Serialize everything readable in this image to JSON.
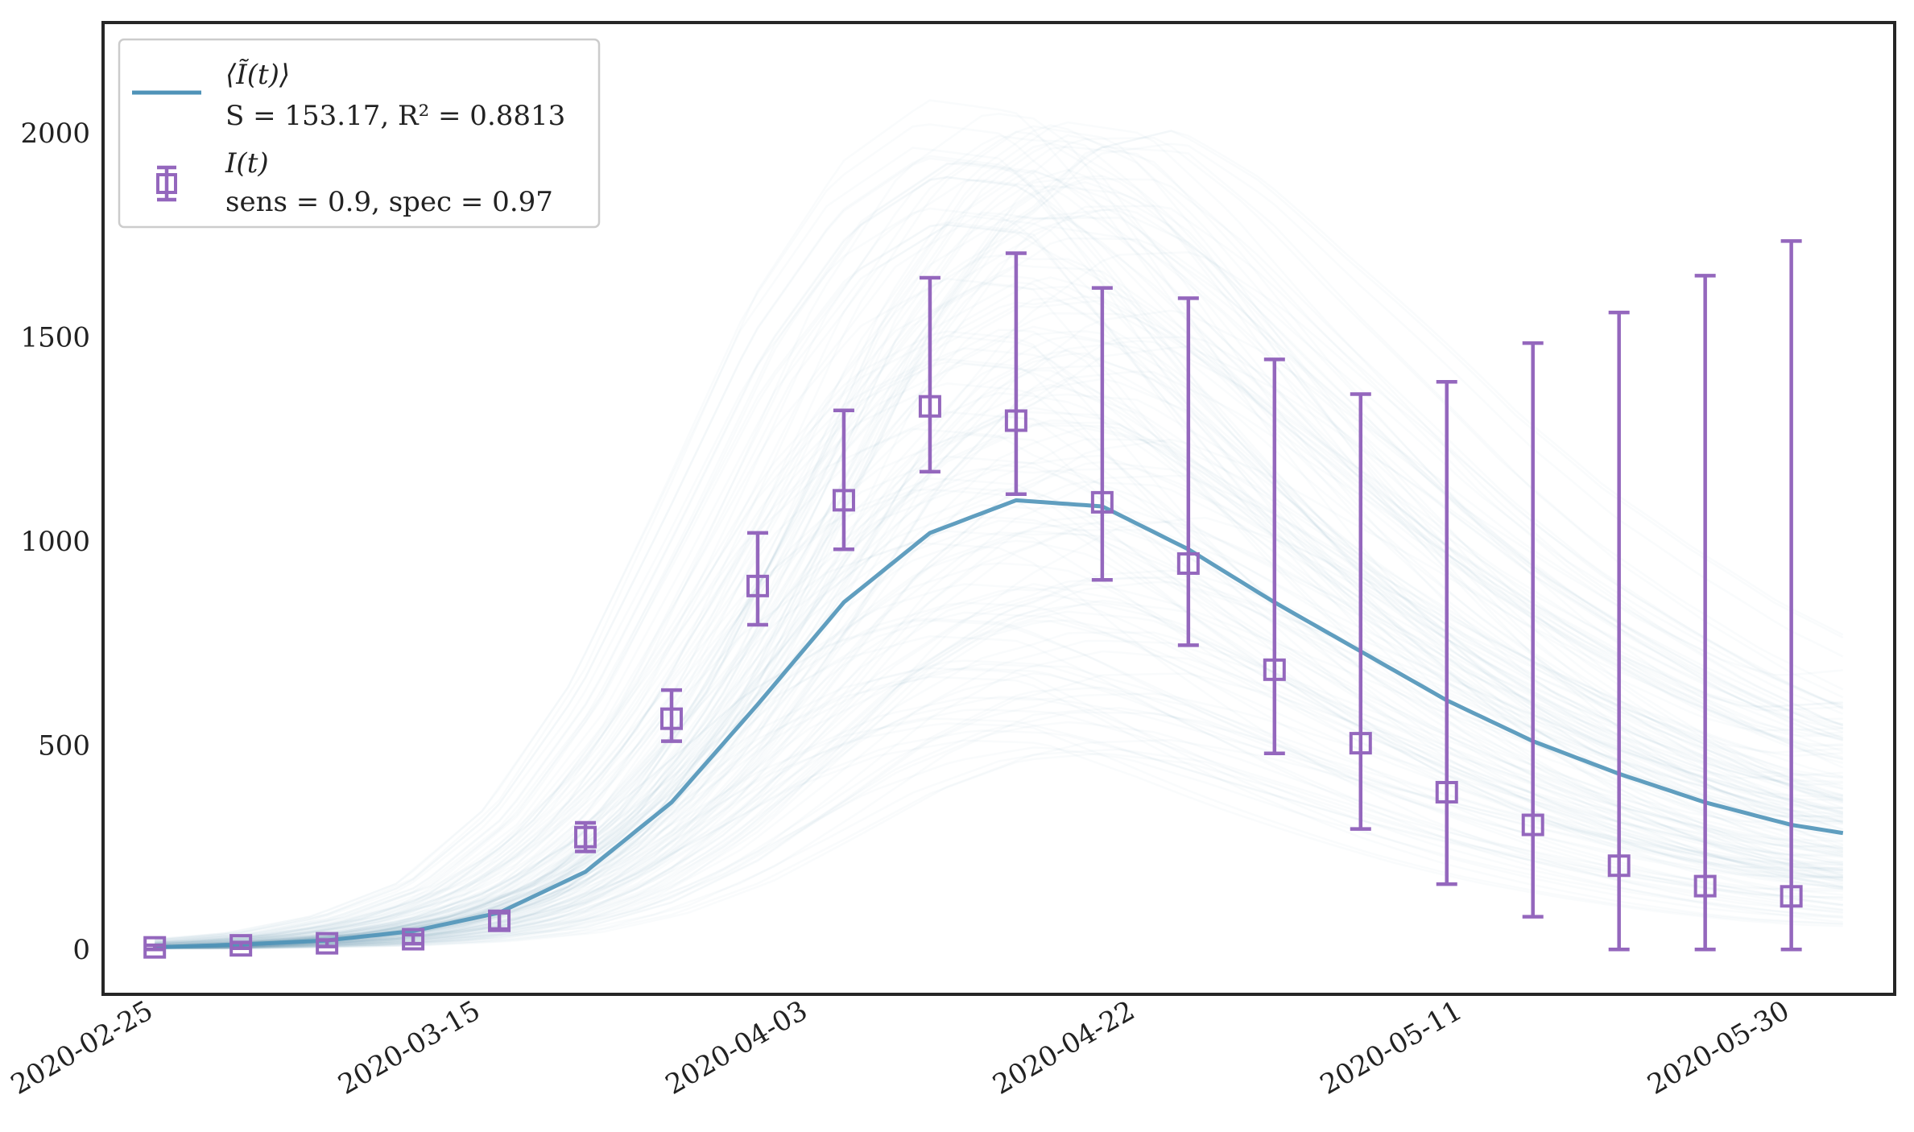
{
  "chart_data": {
    "type": "line",
    "title": "",
    "xlabel": "",
    "ylabel": "",
    "grid": false,
    "legend_position": "top-left",
    "xlim": [
      "2020-02-22",
      "2020-06-05"
    ],
    "ylim": [
      -110,
      2270
    ],
    "x_ticks": [
      "2020-02-25",
      "2020-03-15",
      "2020-04-03",
      "2020-04-22",
      "2020-05-11",
      "2020-05-30"
    ],
    "y_ticks": [
      0,
      500,
      1000,
      1500,
      2000
    ],
    "series": [
      {
        "name": "⟨Ĩ(t)⟩",
        "name_math": "⟨Ĩ(t)⟩",
        "subtitle": "S = 153.17, R² = 0.8813",
        "kind": "line",
        "color": "#4f93b8",
        "x": [
          "2020-02-25",
          "2020-03-01",
          "2020-03-06",
          "2020-03-11",
          "2020-03-16",
          "2020-03-21",
          "2020-03-26",
          "2020-03-31",
          "2020-04-05",
          "2020-04-10",
          "2020-04-15",
          "2020-04-20",
          "2020-04-25",
          "2020-04-30",
          "2020-05-05",
          "2020-05-10",
          "2020-05-15",
          "2020-05-20",
          "2020-05-25",
          "2020-05-30",
          "2020-06-02"
        ],
        "y": [
          5,
          12,
          22,
          45,
          90,
          190,
          360,
          600,
          850,
          1020,
          1100,
          1085,
          980,
          850,
          730,
          610,
          510,
          430,
          360,
          305,
          285
        ]
      },
      {
        "name": "I(t)",
        "name_math": "I(t)",
        "subtitle": "sens = 0.9, spec = 0.97",
        "kind": "errorbar",
        "color": "#9467bd",
        "x": [
          "2020-02-25",
          "2020-03-01",
          "2020-03-06",
          "2020-03-11",
          "2020-03-16",
          "2020-03-21",
          "2020-03-26",
          "2020-03-31",
          "2020-04-05",
          "2020-04-10",
          "2020-04-15",
          "2020-04-20",
          "2020-04-25",
          "2020-04-30",
          "2020-05-05",
          "2020-05-10",
          "2020-05-15",
          "2020-05-20",
          "2020-05-25",
          "2020-05-30"
        ],
        "y": [
          5,
          10,
          15,
          25,
          70,
          275,
          565,
          890,
          1100,
          1330,
          1295,
          1095,
          945,
          685,
          505,
          385,
          305,
          205,
          155,
          130
        ],
        "y_low": [
          0,
          3,
          7,
          14,
          50,
          240,
          510,
          795,
          980,
          1170,
          1115,
          905,
          745,
          480,
          295,
          160,
          80,
          0,
          0,
          0
        ],
        "y_high": [
          10,
          17,
          23,
          36,
          90,
          310,
          635,
          1020,
          1320,
          1645,
          1705,
          1620,
          1595,
          1445,
          1360,
          1390,
          1485,
          1560,
          1650,
          1735
        ]
      }
    ],
    "ensemble": {
      "description": "posterior sample curves",
      "color": "#4c80b6"
    }
  }
}
